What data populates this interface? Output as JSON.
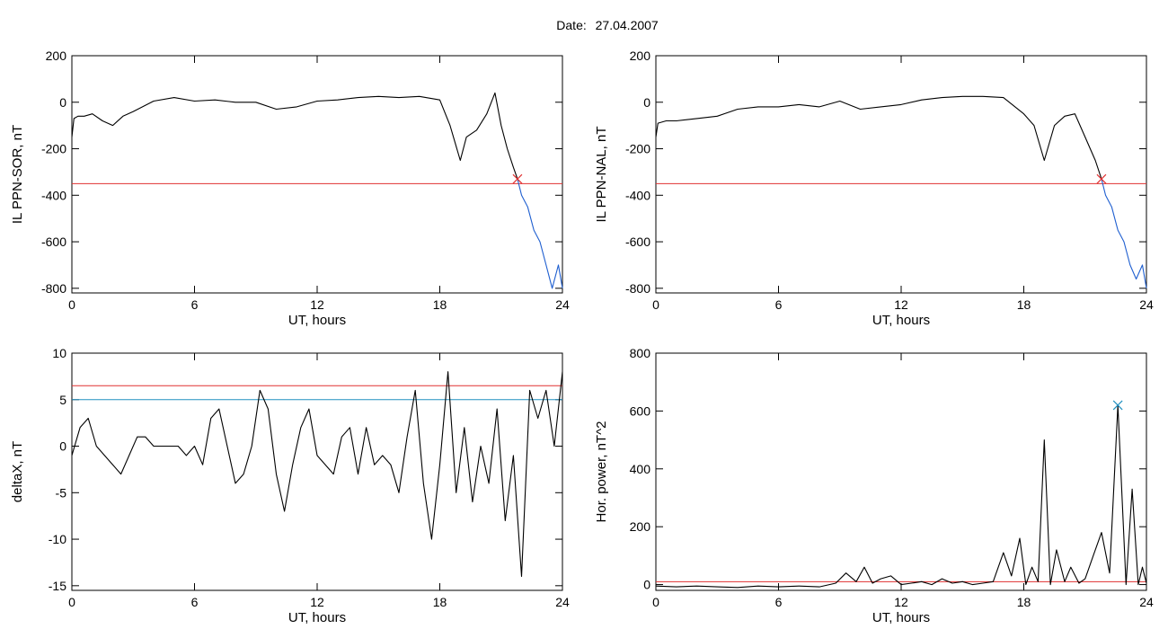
{
  "header": {
    "date_label": "Date:",
    "date_value": "27.04.2007"
  },
  "chart_data": [
    {
      "type": "line",
      "xlabel": "UT, hours",
      "ylabel": "IL PPN-SOR, nT",
      "xlim": [
        0,
        24
      ],
      "ylim": [
        -820,
        200
      ],
      "xticks": [
        0,
        6,
        12,
        18,
        24
      ],
      "yticks": [
        -800,
        -600,
        -400,
        -200,
        0,
        200
      ],
      "threshold": {
        "value": -350,
        "color": "#e03030"
      },
      "marker": {
        "x": 21.8,
        "y": -330,
        "symbol": "x",
        "color": "#e03030"
      },
      "series": [
        {
          "color": "#000000",
          "x": [
            0,
            0.1,
            0.3,
            0.6,
            1.0,
            1.5,
            2.0,
            2.5,
            3.0,
            4.0,
            5.0,
            6.0,
            7.0,
            8.0,
            9.0,
            10.0,
            11.0,
            12.0,
            13.0,
            14.0,
            15.0,
            16.0,
            17.0,
            18.0,
            18.5,
            19.0,
            19.3,
            19.8,
            20.3,
            20.7,
            21.0,
            21.3,
            21.6,
            21.8
          ],
          "y": [
            -150,
            -70,
            -60,
            -60,
            -50,
            -80,
            -100,
            -60,
            -40,
            5,
            20,
            5,
            10,
            0,
            0,
            -30,
            -20,
            5,
            10,
            20,
            25,
            20,
            25,
            10,
            -100,
            -250,
            -150,
            -120,
            -50,
            40,
            -100,
            -200,
            -280,
            -330
          ]
        },
        {
          "color": "#1f5fd0",
          "x": [
            21.8,
            22.0,
            22.3,
            22.6,
            22.9,
            23.2,
            23.5,
            23.8,
            24.0
          ],
          "y": [
            -330,
            -400,
            -450,
            -550,
            -600,
            -700,
            -800,
            -700,
            -800
          ]
        }
      ]
    },
    {
      "type": "line",
      "xlabel": "UT, hours",
      "ylabel": "IL PPN-NAL, nT",
      "xlim": [
        0,
        24
      ],
      "ylim": [
        -820,
        200
      ],
      "xticks": [
        0,
        6,
        12,
        18,
        24
      ],
      "yticks": [
        -800,
        -600,
        -400,
        -200,
        0,
        200
      ],
      "threshold": {
        "value": -350,
        "color": "#e03030"
      },
      "marker": {
        "x": 21.8,
        "y": -330,
        "symbol": "x",
        "color": "#e03030"
      },
      "series": [
        {
          "color": "#000000",
          "x": [
            0,
            0.1,
            0.5,
            1.0,
            2.0,
            3.0,
            4.0,
            5.0,
            6.0,
            7.0,
            8.0,
            9.0,
            10.0,
            11.0,
            12.0,
            13.0,
            14.0,
            15.0,
            16.0,
            17.0,
            18.0,
            18.5,
            19.0,
            19.5,
            20.0,
            20.5,
            21.0,
            21.5,
            21.8
          ],
          "y": [
            -150,
            -90,
            -80,
            -80,
            -70,
            -60,
            -30,
            -20,
            -20,
            -10,
            -20,
            5,
            -30,
            -20,
            -10,
            10,
            20,
            25,
            25,
            20,
            -50,
            -100,
            -250,
            -100,
            -60,
            -50,
            -150,
            -250,
            -330
          ]
        },
        {
          "color": "#1f5fd0",
          "x": [
            21.8,
            22.0,
            22.3,
            22.6,
            22.9,
            23.2,
            23.5,
            23.8,
            24.0
          ],
          "y": [
            -330,
            -400,
            -450,
            -550,
            -600,
            -700,
            -760,
            -700,
            -800
          ]
        }
      ]
    },
    {
      "type": "line",
      "xlabel": "UT, hours",
      "ylabel": "deltaX, nT",
      "xlim": [
        0,
        24
      ],
      "ylim": [
        -15.5,
        10
      ],
      "xticks": [
        0,
        6,
        12,
        18,
        24
      ],
      "yticks": [
        -15,
        -10,
        -5,
        0,
        5,
        10
      ],
      "thresholds": [
        {
          "value": 6.5,
          "color": "#e03030"
        },
        {
          "value": 5.0,
          "color": "#2090c0"
        }
      ],
      "series": [
        {
          "color": "#000000",
          "x": [
            0,
            0.4,
            0.8,
            1.2,
            1.6,
            2.0,
            2.4,
            2.8,
            3.2,
            3.6,
            4.0,
            4.4,
            4.8,
            5.2,
            5.6,
            6.0,
            6.4,
            6.8,
            7.2,
            7.6,
            8.0,
            8.4,
            8.8,
            9.2,
            9.6,
            10.0,
            10.4,
            10.8,
            11.2,
            11.6,
            12.0,
            12.4,
            12.8,
            13.2,
            13.6,
            14.0,
            14.4,
            14.8,
            15.2,
            15.6,
            16.0,
            16.4,
            16.8,
            17.2,
            17.6,
            18.0,
            18.4,
            18.8,
            19.2,
            19.6,
            20.0,
            20.4,
            20.8,
            21.2,
            21.6,
            22.0,
            22.4,
            22.8,
            23.2,
            23.6,
            24.0
          ],
          "y": [
            -1,
            2,
            3,
            0,
            -1,
            -2,
            -3,
            -1,
            1,
            1,
            0,
            0,
            0,
            0,
            -1,
            0,
            -2,
            3,
            4,
            0,
            -4,
            -3,
            0,
            6,
            4,
            -3,
            -7,
            -2,
            2,
            4,
            -1,
            -2,
            -3,
            1,
            2,
            -3,
            2,
            -2,
            -1,
            -2,
            -5,
            1,
            6,
            -4,
            -10,
            -2,
            8,
            -5,
            2,
            -6,
            0,
            -4,
            4,
            -8,
            -1,
            -14,
            6,
            3,
            6,
            0,
            8
          ]
        }
      ]
    },
    {
      "type": "line",
      "xlabel": "UT, hours",
      "ylabel": "Hor. power, nT^2",
      "xlim": [
        0,
        24
      ],
      "ylim": [
        -20,
        800
      ],
      "xticks": [
        0,
        6,
        12,
        18,
        24
      ],
      "yticks": [
        0,
        200,
        400,
        600,
        800
      ],
      "threshold": {
        "value": 10,
        "color": "#e03030"
      },
      "marker": {
        "x": 22.6,
        "y": 620,
        "symbol": "x",
        "color": "#2090c0"
      },
      "series": [
        {
          "color": "#000000",
          "x": [
            0,
            1,
            2,
            3,
            4,
            5,
            6,
            7,
            8,
            8.8,
            9.3,
            9.8,
            10.2,
            10.6,
            11.0,
            11.5,
            12.0,
            12.5,
            13.0,
            13.5,
            14.0,
            14.5,
            15.0,
            15.5,
            16.0,
            16.5,
            17.0,
            17.4,
            17.8,
            18.1,
            18.4,
            18.7,
            19.0,
            19.3,
            19.6,
            20.0,
            20.3,
            20.7,
            21.0,
            21.4,
            21.8,
            22.2,
            22.6,
            23.0,
            23.3,
            23.6,
            23.8,
            24.0
          ],
          "y": [
            -5,
            -8,
            -5,
            -8,
            -10,
            -5,
            -8,
            -5,
            -8,
            5,
            40,
            10,
            60,
            5,
            20,
            30,
            0,
            5,
            10,
            0,
            20,
            5,
            10,
            0,
            5,
            10,
            110,
            30,
            160,
            0,
            60,
            10,
            500,
            0,
            120,
            10,
            60,
            5,
            20,
            100,
            180,
            40,
            620,
            0,
            330,
            0,
            60,
            5
          ]
        }
      ]
    }
  ]
}
